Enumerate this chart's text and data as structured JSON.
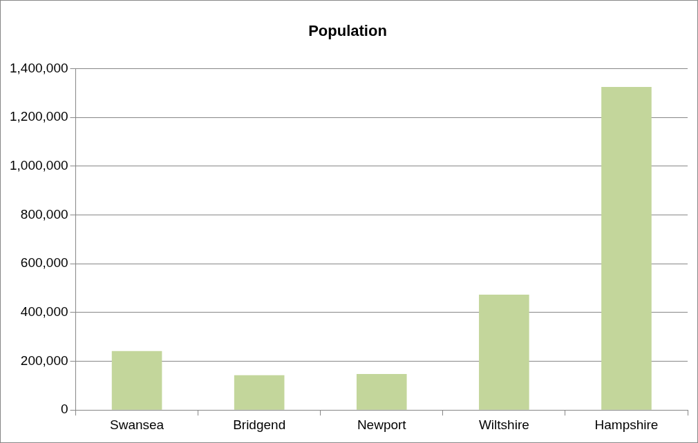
{
  "chart_data": {
    "type": "bar",
    "title": "Population",
    "categories": [
      "Swansea",
      "Bridgend",
      "Newport",
      "Wiltshire",
      "Hampshire"
    ],
    "values": [
      242000,
      143000,
      148000,
      473000,
      1325000
    ],
    "color": "#c3d69b",
    "ylim": [
      0,
      1400000
    ],
    "yticks": [
      0,
      {
        "value": 200000,
        "label": "200,000"
      },
      {
        "value": 400000,
        "label": "400,000"
      },
      {
        "value": 600000,
        "label": "600,000"
      },
      {
        "value": 800000,
        "label": "800,000"
      },
      {
        "value": 1000000,
        "label": "1,000,000"
      },
      {
        "value": 1200000,
        "label": "1,200,000"
      },
      {
        "value": 1400000,
        "label": "1,400,000"
      }
    ],
    "grid": "y",
    "legend": false
  }
}
